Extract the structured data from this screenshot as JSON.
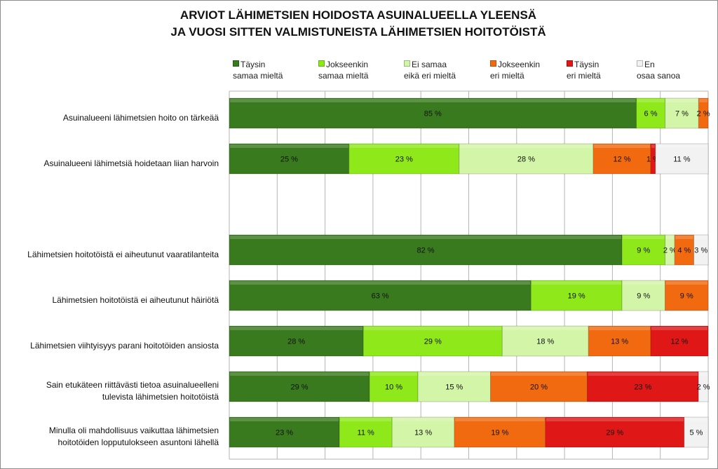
{
  "chart_data": {
    "type": "bar",
    "orientation": "horizontal",
    "stacked": "percent",
    "title_line1": "ARVIOT LÄHIMETSIEN HOIDOSTA ASUINALUEELLA YLEENSÄ",
    "title_line2": "JA VUOSI SITTEN VALMISTUNEISTA LÄHIMETSIEN HOITOTÖISTÄ",
    "xlim": [
      0,
      100
    ],
    "grid": true,
    "legend_position": "top",
    "series": [
      {
        "name_line1": "Täysin",
        "name_line2": "samaa mieltä",
        "color": "#3a7a1e"
      },
      {
        "name_line1": "Jokseenkin",
        "name_line2": "samaa mieltä",
        "color": "#8ee81a"
      },
      {
        "name_line1": "Ei samaa",
        "name_line2": "eikä eri mieltä",
        "color": "#d3f5a8"
      },
      {
        "name_line1": "Jokseenkin",
        "name_line2": "eri mieltä",
        "color": "#f26a0f"
      },
      {
        "name_line1": "Täysin",
        "name_line2": "eri mieltä",
        "color": "#e01717"
      },
      {
        "name_line1": "En",
        "name_line2": "osaa sanoa",
        "color": "#f2f2f2"
      }
    ],
    "categories": [
      {
        "label": "Asuinalueeni lähimetsien hoito on tärkeää",
        "values": [
          85,
          6,
          7,
          2,
          null,
          null
        ],
        "labels": [
          "85 %",
          "6 %",
          "7 %",
          "2 %",
          "",
          ""
        ]
      },
      {
        "label": "Asuinalueeni lähimetsiä hoidetaan liian harvoin",
        "values": [
          25,
          23,
          28,
          12,
          1,
          11
        ],
        "labels": [
          "25 %",
          "23 %",
          "28 %",
          "12 %",
          "1 %",
          "11 %"
        ]
      },
      {
        "label": "",
        "values": [],
        "labels": []
      },
      {
        "label": "Lähimetsien hoitotöistä ei aiheutunut vaaratilanteita",
        "values": [
          82,
          9,
          2,
          4,
          null,
          3
        ],
        "labels": [
          "82 %",
          "9 %",
          "2 %",
          "4 %",
          "",
          "3 %"
        ]
      },
      {
        "label": "Lähimetsien hoitotöistä ei aiheutunut häiriötä",
        "values": [
          63,
          19,
          9,
          9,
          null,
          null
        ],
        "labels": [
          "63 %",
          "19 %",
          "9 %",
          "9 %",
          "",
          ""
        ]
      },
      {
        "label": "Lähimetsien viihtyisyys parani hoitotöiden ansiosta",
        "values": [
          28,
          29,
          18,
          13,
          12,
          null
        ],
        "labels": [
          "28 %",
          "29 %",
          "18 %",
          "13 %",
          "12 %",
          ""
        ]
      },
      {
        "label_line1": "Sain etukäteen riittävästi tietoa asuinalueelleni",
        "label_line2": "tulevista lähimetsien hoitotöistä",
        "values": [
          29,
          10,
          15,
          20,
          23,
          2
        ],
        "labels": [
          "29 %",
          "10 %",
          "15 %",
          "20 %",
          "23 %",
          "2 %"
        ]
      },
      {
        "label_line1": "Minulla oli mahdollisuus vaikuttaa lähimetsien",
        "label_line2": "hoitotöiden lopputulokseen asuntoni lähellä",
        "values": [
          23,
          11,
          13,
          19,
          29,
          5
        ],
        "labels": [
          "23 %",
          "11 %",
          "13 %",
          "19 %",
          "29 %",
          "5 %"
        ]
      }
    ]
  }
}
